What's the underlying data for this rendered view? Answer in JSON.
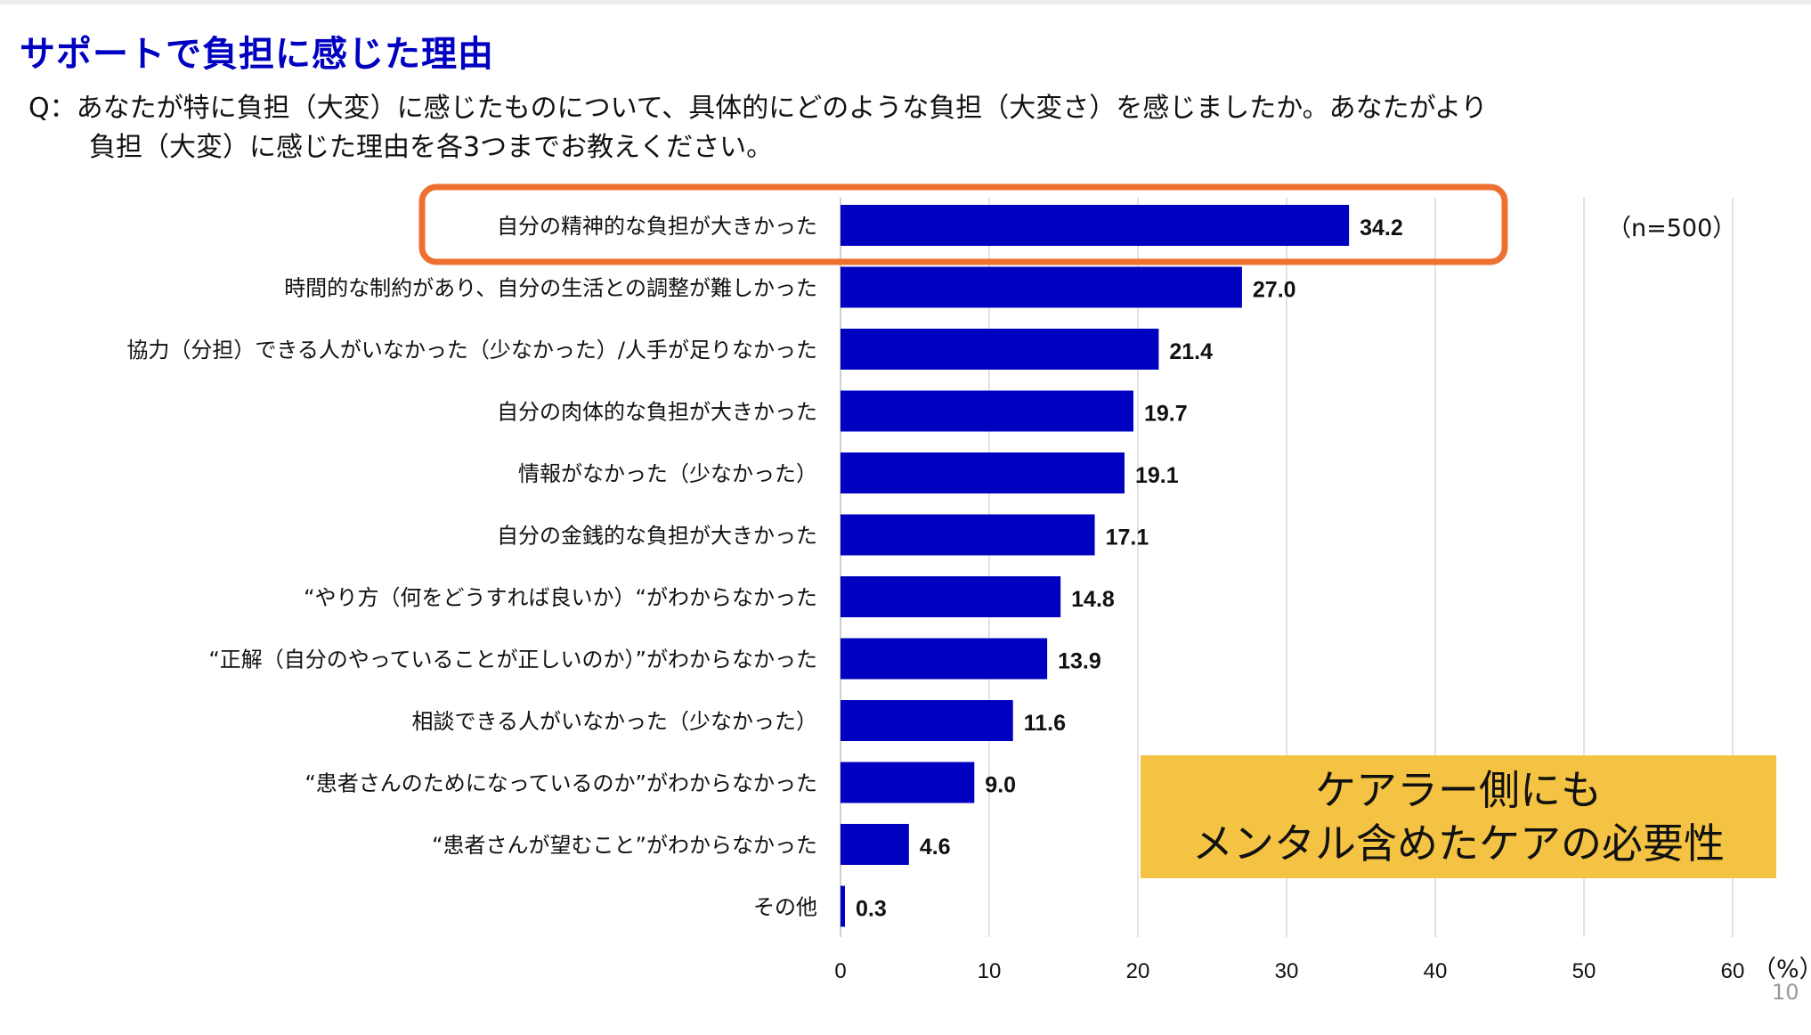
{
  "slide": {
    "title": "サポートで負担に感じた理由",
    "question_line1": "Q：あなたが特に負担（大変）に感じたものについて、具体的にどのような負担（大変さ）を感じましたか。あなたがより",
    "question_line2": "負担（大変）に感じた理由を各3つまでお教えください。",
    "sample_size": "（n=500）",
    "callout_line1": "ケアラー側にも",
    "callout_line2": "メンタル含めたケアの必要性",
    "page_number": "10"
  },
  "colors": {
    "bar": "#0000c0",
    "title": "#0000c0",
    "highlight_border": "#ee7031",
    "callout_bg": "#f4c343",
    "grid": "#d9d9d9"
  },
  "chart_data": {
    "type": "bar",
    "orientation": "horizontal",
    "categories": [
      "自分の精神的な負担が大きかった",
      "時間的な制約があり、自分の生活との調整が難しかった",
      "協力（分担）できる人がいなかった（少なかった）/人手が足りなかった",
      "自分の肉体的な負担が大きかった",
      "情報がなかった（少なかった）",
      "自分の金銭的な負担が大きかった",
      "“やり方（何をどうすれば良いか）“がわからなかった",
      "“正解（自分のやっていることが正しいのか）”がわからなかった",
      "相談できる人がいなかった（少なかった）",
      "“患者さんのためになっているのか”がわからなかった",
      "“患者さんが望むこと”がわからなかった",
      "その他"
    ],
    "values": [
      34.2,
      27.0,
      21.4,
      19.7,
      19.1,
      17.1,
      14.8,
      13.9,
      11.6,
      9.0,
      4.6,
      0.3
    ],
    "value_labels": [
      "34.2",
      "27.0",
      "21.4",
      "19.7",
      "19.1",
      "17.1",
      "14.8",
      "13.9",
      "11.6",
      "9.0",
      "4.6",
      "0.3"
    ],
    "xlim": [
      0,
      60
    ],
    "xticks": [
      "0",
      "10",
      "20",
      "30",
      "40",
      "50",
      "60"
    ],
    "xlabel": "（%）",
    "grid": true,
    "highlighted_category": "自分の精神的な負担が大きかった"
  }
}
